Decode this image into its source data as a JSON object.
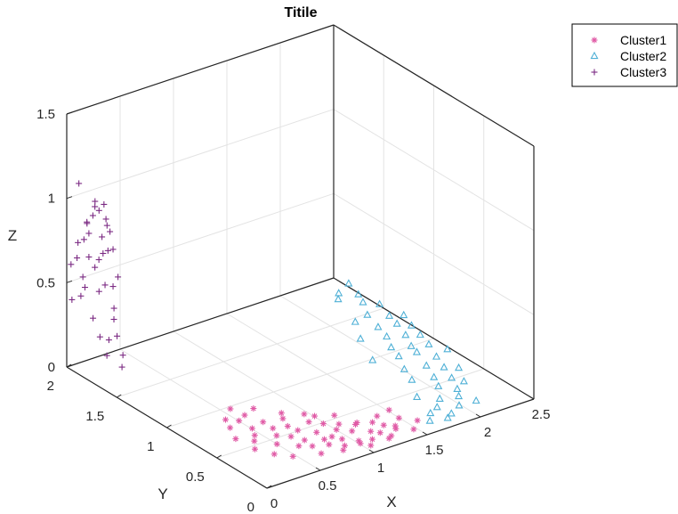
{
  "chart_data": {
    "type": "scatter",
    "title": "Titile",
    "xlabel": "X",
    "ylabel": "Y",
    "zlabel": "Z",
    "xlim": [
      0,
      2.5
    ],
    "ylim": [
      0,
      2
    ],
    "zlim": [
      0,
      1.5
    ],
    "x_ticks": [
      "0",
      "0.5",
      "1",
      "1.5",
      "2",
      "2.5"
    ],
    "y_ticks": [
      "0",
      "0.5",
      "1",
      "1.5",
      "2"
    ],
    "z_ticks": [
      "0",
      "0.5",
      "1",
      "1.5"
    ],
    "grid": true,
    "legend_position": "top-right",
    "series": [
      {
        "name": "Cluster1",
        "marker": "asterisk",
        "color": "#e05ba6",
        "points": [
          [
            0.36,
            0.51,
            0.02
          ],
          [
            0.27,
            0.6,
            0.02
          ],
          [
            0.33,
            0.72,
            0.03
          ],
          [
            0.42,
            0.57,
            0.02
          ],
          [
            0.45,
            0.38,
            0.03
          ],
          [
            0.49,
            0.67,
            0.01
          ],
          [
            0.55,
            0.49,
            0.02
          ],
          [
            0.58,
            0.3,
            0.02
          ],
          [
            0.61,
            0.41,
            0.03
          ],
          [
            0.66,
            0.25,
            0.02
          ],
          [
            0.69,
            0.36,
            0.01
          ],
          [
            0.71,
            0.55,
            0.02
          ],
          [
            0.76,
            0.19,
            0.03
          ],
          [
            0.8,
            0.28,
            0.02
          ],
          [
            0.84,
            0.4,
            0.01
          ],
          [
            0.86,
            0.14,
            0.02
          ],
          [
            0.91,
            0.22,
            0.02
          ],
          [
            0.96,
            0.09,
            0.03
          ],
          [
            0.97,
            0.34,
            0.02
          ],
          [
            1.01,
            0.16,
            0.01
          ],
          [
            1.05,
            0.27,
            0.02
          ],
          [
            1.09,
            0.11,
            0.02
          ],
          [
            1.12,
            0.31,
            0.03
          ],
          [
            1.16,
            0.2,
            0.02
          ],
          [
            1.22,
            0.17,
            0.01
          ],
          [
            1.24,
            0.08,
            0.02
          ],
          [
            1.3,
            0.22,
            0.02
          ],
          [
            1.32,
            0.12,
            0.03
          ],
          [
            1.38,
            0.19,
            0.01
          ],
          [
            1.44,
            0.07,
            0.02
          ],
          [
            0.56,
            0.82,
            0.02
          ],
          [
            0.62,
            0.7,
            0.01
          ],
          [
            0.74,
            0.63,
            0.03
          ],
          [
            0.88,
            0.52,
            0.02
          ],
          [
            0.95,
            0.45,
            0.02
          ],
          [
            1.04,
            0.39,
            0.02
          ],
          [
            1.18,
            0.36,
            0.01
          ],
          [
            1.26,
            0.29,
            0.02
          ],
          [
            0.4,
            0.84,
            0.02
          ],
          [
            0.52,
            0.92,
            0.03
          ],
          [
            0.47,
            0.78,
            0.02
          ],
          [
            0.68,
            0.86,
            0.02
          ],
          [
            0.82,
            0.73,
            0.01
          ],
          [
            0.93,
            0.62,
            0.02
          ],
          [
            1.1,
            0.5,
            0.02
          ],
          [
            1.35,
            0.34,
            0.02
          ],
          [
            1.48,
            0.26,
            0.01
          ],
          [
            1.02,
            0.05,
            0.02
          ],
          [
            0.79,
            0.08,
            0.03
          ],
          [
            0.64,
            0.14,
            0.02
          ],
          [
            1.55,
            0.15,
            0.02
          ],
          [
            1.5,
            0.38,
            0.01
          ],
          [
            0.35,
            0.3,
            0.02
          ],
          [
            0.3,
            0.44,
            0.01
          ],
          [
            0.44,
            0.21,
            0.02
          ],
          [
            0.73,
            0.47,
            0.02
          ],
          [
            0.89,
            0.3,
            0.01
          ],
          [
            1.2,
            0.06,
            0.02
          ],
          [
            0.6,
            0.58,
            0.02
          ],
          [
            0.99,
            0.58,
            0.01
          ]
        ]
      },
      {
        "name": "Cluster2",
        "marker": "triangle",
        "color": "#4fb0d6",
        "points": [
          [
            1.62,
            0.1,
            0.02
          ],
          [
            1.7,
            0.18,
            0.02
          ],
          [
            1.74,
            0.05,
            0.03
          ],
          [
            1.8,
            0.22,
            0.02
          ],
          [
            1.84,
            0.12,
            0.01
          ],
          [
            1.9,
            0.3,
            0.02
          ],
          [
            1.95,
            0.16,
            0.02
          ],
          [
            2.0,
            0.42,
            0.03
          ],
          [
            2.04,
            0.26,
            0.02
          ],
          [
            2.08,
            0.55,
            0.02
          ],
          [
            2.12,
            0.36,
            0.01
          ],
          [
            2.15,
            0.7,
            0.02
          ],
          [
            2.18,
            0.48,
            0.02
          ],
          [
            2.21,
            0.86,
            0.03
          ],
          [
            2.24,
            0.62,
            0.02
          ],
          [
            2.27,
            0.98,
            0.01
          ],
          [
            2.3,
            0.76,
            0.02
          ],
          [
            2.33,
            1.1,
            0.02
          ],
          [
            2.36,
            0.9,
            0.03
          ],
          [
            2.39,
            1.25,
            0.02
          ],
          [
            2.42,
            1.05,
            0.02
          ],
          [
            2.44,
            1.38,
            0.01
          ],
          [
            2.46,
            1.18,
            0.02
          ],
          [
            2.48,
            1.52,
            0.02
          ],
          [
            2.5,
            1.3,
            0.03
          ],
          [
            2.4,
            1.6,
            0.02
          ],
          [
            2.3,
            1.45,
            0.02
          ],
          [
            2.26,
            1.3,
            0.01
          ],
          [
            2.2,
            1.15,
            0.02
          ],
          [
            2.12,
            1.02,
            0.02
          ],
          [
            2.06,
            0.88,
            0.03
          ],
          [
            1.98,
            0.74,
            0.02
          ],
          [
            1.92,
            0.6,
            0.02
          ],
          [
            2.28,
            1.72,
            0.02
          ],
          [
            2.36,
            1.8,
            0.01
          ],
          [
            2.45,
            1.7,
            0.02
          ],
          [
            2.5,
            1.85,
            0.02
          ],
          [
            2.14,
            1.4,
            0.03
          ],
          [
            2.02,
            1.22,
            0.02
          ],
          [
            1.88,
            0.95,
            0.02
          ],
          [
            2.22,
            0.4,
            0.02
          ],
          [
            2.34,
            0.58,
            0.01
          ],
          [
            2.44,
            0.8,
            0.02
          ],
          [
            1.78,
            0.4,
            0.02
          ],
          [
            2.1,
            0.15,
            0.02
          ]
        ]
      },
      {
        "name": "Cluster3",
        "marker": "plus",
        "color": "#7b2a83",
        "points": [
          [
            0.02,
            1.62,
            0.2
          ],
          [
            0.03,
            1.7,
            0.28
          ],
          [
            0.04,
            1.78,
            0.36
          ],
          [
            0.02,
            1.55,
            0.44
          ],
          [
            0.03,
            1.85,
            0.52
          ],
          [
            0.04,
            1.66,
            0.6
          ],
          [
            0.02,
            1.74,
            0.68
          ],
          [
            0.03,
            1.92,
            0.76
          ],
          [
            0.04,
            1.58,
            0.84
          ],
          [
            0.02,
            1.82,
            0.92
          ],
          [
            0.03,
            1.64,
            1.0
          ],
          [
            0.04,
            1.76,
            1.06
          ],
          [
            0.02,
            1.9,
            1.12
          ],
          [
            0.03,
            1.52,
            0.7
          ],
          [
            0.04,
            1.68,
            0.78
          ],
          [
            0.02,
            1.8,
            0.86
          ],
          [
            0.03,
            1.6,
            0.94
          ],
          [
            0.04,
            1.72,
            1.02
          ],
          [
            0.02,
            1.86,
            0.58
          ],
          [
            0.03,
            1.56,
            0.5
          ],
          [
            0.04,
            1.94,
            0.66
          ],
          [
            0.02,
            1.7,
            0.74
          ],
          [
            0.03,
            1.62,
            0.82
          ],
          [
            0.04,
            1.84,
            0.9
          ],
          [
            0.02,
            1.76,
            0.98
          ],
          [
            0.03,
            1.66,
            1.08
          ],
          [
            0.04,
            1.58,
            0.62
          ],
          [
            0.02,
            1.88,
            0.46
          ],
          [
            0.03,
            1.98,
            0.4
          ],
          [
            0.04,
            1.54,
            0.34
          ],
          [
            0.02,
            1.46,
            0.26
          ],
          [
            0.03,
            1.48,
            0.18
          ],
          [
            0.04,
            1.72,
            0.54
          ],
          [
            0.02,
            1.8,
            0.72
          ],
          [
            0.03,
            1.68,
            0.88
          ],
          [
            0.04,
            1.64,
            0.96
          ],
          [
            0.02,
            1.74,
            1.04
          ],
          [
            0.03,
            1.86,
            0.8
          ],
          [
            0.04,
            2.0,
            0.6
          ],
          [
            0.02,
            1.6,
            0.3
          ]
        ]
      }
    ]
  },
  "legend": {
    "entries": [
      "Cluster1",
      "Cluster2",
      "Cluster3"
    ]
  }
}
